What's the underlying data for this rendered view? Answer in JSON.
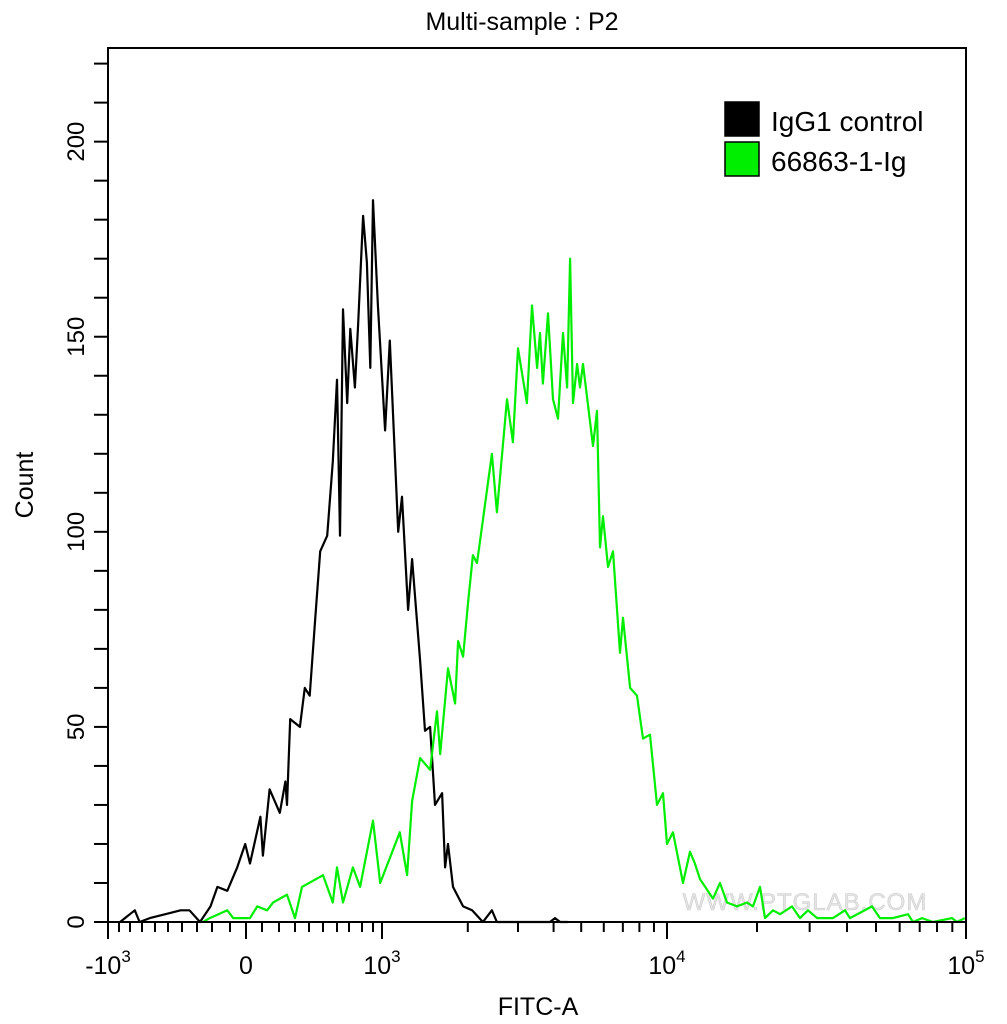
{
  "chart_data": {
    "type": "line",
    "title": "Multi-sample : P2",
    "xlabel": "FITC-A",
    "ylabel": "Count",
    "x_scale": "biexponential",
    "xlim": [
      -1000,
      100000
    ],
    "ylim": [
      0,
      224
    ],
    "grid": false,
    "legend_position": "top-right",
    "x_ticks": [
      {
        "value": -1000,
        "base": "-10",
        "exp": "3"
      },
      {
        "value": 0,
        "base": "0",
        "exp": ""
      },
      {
        "value": 1000,
        "base": "10",
        "exp": "3"
      },
      {
        "value": 10000,
        "base": "10",
        "exp": "4"
      },
      {
        "value": 100000,
        "base": "10",
        "exp": "5"
      }
    ],
    "y_ticks": [
      {
        "value": 0,
        "label": "0"
      },
      {
        "value": 50,
        "label": "50"
      },
      {
        "value": 100,
        "label": "100"
      },
      {
        "value": 150,
        "label": "150"
      },
      {
        "value": 200,
        "label": "200"
      }
    ],
    "series": [
      {
        "name": "IgG1 control",
        "color": "#000000",
        "x": [
          -890,
          -760,
          -720,
          -640,
          -520,
          -410,
          -350,
          -280,
          -210,
          -170,
          -115,
          -55,
          -5,
          25,
          90,
          105,
          145,
          205,
          240,
          250,
          270,
          335,
          370,
          405,
          445,
          480,
          530,
          570,
          600,
          625,
          650,
          685,
          710,
          745,
          770,
          810,
          845,
          875,
          900,
          955,
          1025,
          1065,
          1140,
          1175,
          1235,
          1275,
          1360,
          1415,
          1475,
          1535,
          1625,
          1665,
          1705,
          1775,
          1925,
          2070,
          2260,
          2430,
          2530,
          3885,
          4045,
          4215,
          4500
        ],
        "y": [
          0,
          3,
          0,
          1,
          2,
          3,
          3,
          0,
          4,
          9,
          8,
          14,
          20,
          15,
          27,
          17,
          34,
          28,
          36,
          30,
          52,
          50,
          60,
          58,
          78,
          95,
          99,
          118,
          139,
          99,
          157,
          133,
          152,
          137,
          153,
          181,
          169,
          142,
          185,
          158,
          126,
          149,
          100,
          109,
          80,
          93,
          67,
          49,
          50,
          30,
          33,
          14,
          20,
          9,
          4,
          3,
          0,
          3,
          0,
          0,
          1,
          0,
          0
        ]
      },
      {
        "name": "66863-1-Ig",
        "color": "#00ee00",
        "x": [
          -260,
          -215,
          -115,
          -80,
          25,
          70,
          130,
          165,
          250,
          300,
          350,
          500,
          570,
          600,
          650,
          730,
          785,
          900,
          980,
          1155,
          1225,
          1275,
          1360,
          1475,
          1560,
          1600,
          1705,
          1805,
          1850,
          1925,
          2005,
          2085,
          2155,
          2260,
          2430,
          2530,
          2745,
          2880,
          3000,
          3225,
          3360,
          3500,
          3585,
          3670,
          3825,
          3980,
          4145,
          4315,
          4460,
          4570,
          4680,
          4835,
          4950,
          5075,
          5500,
          5680,
          5820,
          5965,
          6210,
          6465,
          6840,
          7010,
          7420,
          7850,
          8240,
          8720,
          9225,
          9685,
          10000,
          10470,
          11310,
          11940,
          12400,
          12890,
          14250,
          15040,
          15870,
          17140,
          18520,
          19390,
          20470,
          21270,
          22620,
          23880,
          26180,
          27850,
          29620,
          31760,
          35920,
          39380,
          40930,
          48500,
          51580,
          57000,
          63970,
          66480,
          71250,
          77570,
          89780,
          93300,
          99000
        ],
        "y": [
          0,
          1,
          3,
          1,
          1,
          4,
          3,
          5,
          7,
          1,
          9,
          12,
          5,
          14,
          5,
          14,
          9,
          26,
          10,
          23,
          12,
          31,
          42,
          39,
          54,
          43,
          65,
          56,
          72,
          68,
          82,
          94,
          92,
          103,
          120,
          105,
          134,
          123,
          147,
          133,
          158,
          142,
          151,
          138,
          156,
          134,
          129,
          151,
          137,
          170,
          133,
          143,
          137,
          143,
          122,
          131,
          96,
          104,
          91,
          95,
          69,
          78,
          60,
          58,
          47,
          48,
          30,
          33,
          20,
          23,
          10,
          18,
          15,
          11,
          6,
          10,
          5,
          4,
          5,
          4,
          9,
          1,
          3,
          2,
          4,
          1,
          3,
          1,
          1,
          3,
          1,
          4,
          1,
          1,
          2,
          0,
          1,
          0,
          1,
          0,
          1
        ]
      }
    ],
    "watermark": "WWW.PTGLAB.COM"
  }
}
